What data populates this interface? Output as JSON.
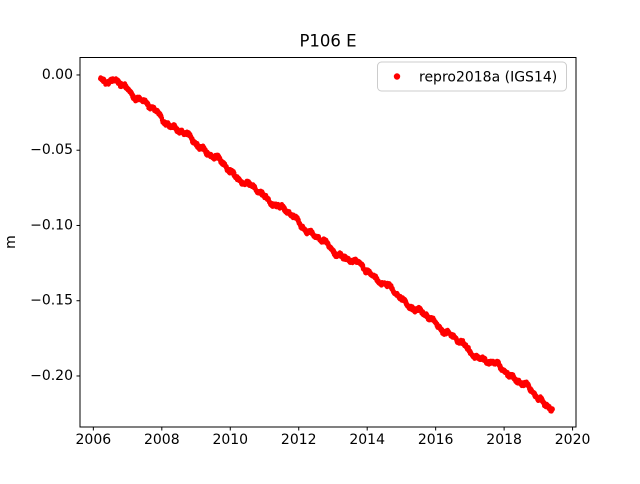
{
  "figure": {
    "background": "#ffffff"
  },
  "legend": {
    "border_color": "#cccccc",
    "background": "#ffffff"
  },
  "chart_data": {
    "type": "scatter",
    "title": "P106 E",
    "xlabel": "",
    "ylabel": "m",
    "grid": false,
    "legend_position": "upper right",
    "xlim": [
      2005.61,
      2020.1
    ],
    "ylim": [
      -0.2339,
      0.0116
    ],
    "x_ticks": {
      "values": [
        2006,
        2008,
        2010,
        2012,
        2014,
        2016,
        2018,
        2020
      ],
      "labels": [
        "2006",
        "2008",
        "2010",
        "2012",
        "2014",
        "2016",
        "2018",
        "2020"
      ]
    },
    "y_ticks": {
      "values": [
        0.0,
        -0.05,
        -0.1,
        -0.15,
        -0.2
      ],
      "labels": [
        "0.00",
        "−0.05",
        "−0.10",
        "−0.15",
        "−0.20"
      ]
    },
    "series": [
      {
        "name": "repro2018a (IGS14)",
        "color": "#ff0000",
        "marker": "point",
        "marker_radius_px": 2.2,
        "x_start": 2006.2,
        "x_end": 2019.42,
        "n_points": 2400,
        "noise_amplitude_m": 0.003,
        "trend_points": [
          [
            2006.2,
            0.0
          ],
          [
            2006.32,
            -0.002
          ],
          [
            2006.45,
            -0.0062
          ],
          [
            2006.6,
            -0.004
          ],
          [
            2006.8,
            -0.0068
          ],
          [
            2007.0,
            -0.01
          ],
          [
            2007.5,
            -0.0185
          ],
          [
            2008.0,
            -0.028
          ],
          [
            2008.5,
            -0.0368
          ],
          [
            2009.0,
            -0.0455
          ],
          [
            2009.5,
            -0.0545
          ],
          [
            2010.0,
            -0.0635
          ],
          [
            2010.5,
            -0.0722
          ],
          [
            2011.0,
            -0.0805
          ],
          [
            2011.5,
            -0.089
          ],
          [
            2012.0,
            -0.098
          ],
          [
            2012.5,
            -0.107
          ],
          [
            2013.0,
            -0.116
          ],
          [
            2013.5,
            -0.1232
          ],
          [
            2014.0,
            -0.1302
          ],
          [
            2014.5,
            -0.139
          ],
          [
            2015.0,
            -0.148
          ],
          [
            2015.5,
            -0.1568
          ],
          [
            2016.0,
            -0.1655
          ],
          [
            2016.5,
            -0.1742
          ],
          [
            2017.0,
            -0.1833
          ],
          [
            2017.5,
            -0.1898
          ],
          [
            2018.0,
            -0.1958
          ],
          [
            2018.5,
            -0.2052
          ],
          [
            2019.0,
            -0.2145
          ],
          [
            2019.42,
            -0.2212
          ]
        ]
      }
    ]
  }
}
